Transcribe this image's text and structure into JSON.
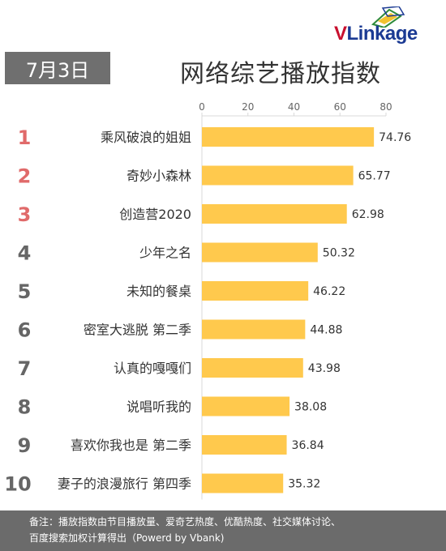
{
  "logo": {
    "text_v": "V",
    "text_rest": "Linkage",
    "colors": {
      "red": "#c8102e",
      "blue": "#1b3a93",
      "green": "#2e8b3a"
    }
  },
  "header": {
    "date": "7月3日",
    "title": "网络综艺播放指数"
  },
  "chart_data": {
    "type": "bar",
    "orientation": "horizontal",
    "title": "网络综艺播放指数",
    "categories": [
      "乘风破浪的姐姐",
      "奇妙小森林",
      "创造营2020",
      "少年之名",
      "未知的餐桌",
      "密室大逃脱 第二季",
      "认真的嘎嘎们",
      "说唱听我的",
      "喜欢你我也是 第二季",
      "妻子的浪漫旅行 第四季"
    ],
    "ranks": [
      "1",
      "2",
      "3",
      "4",
      "5",
      "6",
      "7",
      "8",
      "9",
      "10"
    ],
    "values": [
      74.76,
      65.77,
      62.98,
      50.32,
      46.22,
      44.88,
      43.98,
      38.08,
      36.84,
      35.32
    ],
    "value_labels": [
      "74.76",
      "65.77",
      "62.98",
      "50.32",
      "46.22",
      "44.88",
      "43.98",
      "38.08",
      "36.84",
      "35.32"
    ],
    "xlim": [
      0,
      80
    ],
    "xticks": [
      "0",
      "20",
      "40",
      "60",
      "80"
    ],
    "tick_values": [
      0,
      20,
      40,
      60,
      80
    ],
    "axis_position": "top",
    "grid": false,
    "bar_color": "#ffc94d",
    "rank_color_top3": "#e06a6a",
    "rank_color_other": "#666666"
  },
  "footer": {
    "line1": "备注：播放指数由节目播放量、爱奇艺热度、优酷热度、社交媒体讨论、",
    "line2": "百度搜索加权计算得出（Powerd by Vbank)"
  }
}
